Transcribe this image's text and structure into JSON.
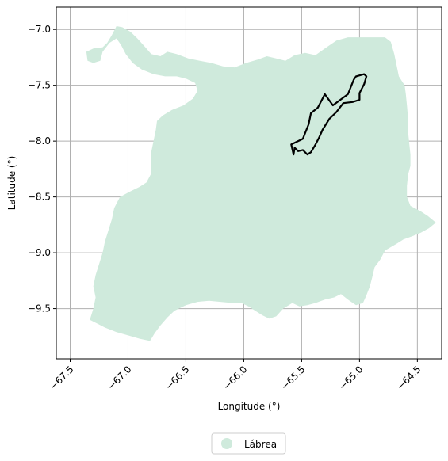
{
  "chart_data": {
    "type": "map",
    "xlabel": "Longitude (°)",
    "ylabel": "Latitude (°)",
    "xlim": [
      -67.62,
      -64.29
    ],
    "ylim": [
      -9.95,
      -6.8
    ],
    "grid": true,
    "x_ticks": [
      -67.5,
      -67.0,
      -66.5,
      -66.0,
      -65.5,
      -65.0,
      -64.5
    ],
    "x_tick_labels": [
      "−67.5",
      "−67.0",
      "−66.5",
      "−66.0",
      "−65.5",
      "−65.0",
      "−64.5"
    ],
    "y_ticks": [
      -7.0,
      -7.5,
      -8.0,
      -8.5,
      -9.0,
      -9.5
    ],
    "y_tick_labels": [
      "−7.0",
      "−7.5",
      "−8.0",
      "−8.5",
      "−9.0",
      "−9.5"
    ],
    "legend": {
      "placement": "bottom-center",
      "entries": [
        {
          "label": "Lábrea",
          "color": "#cfeadc"
        }
      ]
    },
    "colors": {
      "region_fill": "#cfeadc",
      "outline": "#000000",
      "grid": "#b0b0b0"
    },
    "regions": [
      {
        "name": "Lábrea",
        "style": "fill",
        "coords": [
          [
            -67.35,
            -7.28
          ],
          [
            -67.36,
            -7.2
          ],
          [
            -67.3,
            -7.17
          ],
          [
            -67.22,
            -7.16
          ],
          [
            -67.18,
            -7.12
          ],
          [
            -67.14,
            -7.05
          ],
          [
            -67.1,
            -6.97
          ],
          [
            -67.05,
            -6.98
          ],
          [
            -66.98,
            -7.02
          ],
          [
            -66.92,
            -7.08
          ],
          [
            -66.85,
            -7.16
          ],
          [
            -66.8,
            -7.22
          ],
          [
            -66.72,
            -7.24
          ],
          [
            -66.66,
            -7.2
          ],
          [
            -66.58,
            -7.22
          ],
          [
            -66.48,
            -7.26
          ],
          [
            -66.38,
            -7.28
          ],
          [
            -66.28,
            -7.3
          ],
          [
            -66.18,
            -7.33
          ],
          [
            -66.08,
            -7.34
          ],
          [
            -65.98,
            -7.3
          ],
          [
            -65.88,
            -7.27
          ],
          [
            -65.8,
            -7.24
          ],
          [
            -65.72,
            -7.26
          ],
          [
            -65.64,
            -7.28
          ],
          [
            -65.56,
            -7.23
          ],
          [
            -65.47,
            -7.21
          ],
          [
            -65.38,
            -7.23
          ],
          [
            -65.3,
            -7.17
          ],
          [
            -65.2,
            -7.1
          ],
          [
            -65.1,
            -7.07
          ],
          [
            -64.98,
            -7.07
          ],
          [
            -64.78,
            -7.07
          ],
          [
            -64.73,
            -7.11
          ],
          [
            -64.7,
            -7.22
          ],
          [
            -64.68,
            -7.32
          ],
          [
            -64.66,
            -7.42
          ],
          [
            -64.61,
            -7.5
          ],
          [
            -64.6,
            -7.58
          ],
          [
            -64.59,
            -7.68
          ],
          [
            -64.58,
            -7.8
          ],
          [
            -64.58,
            -7.92
          ],
          [
            -64.57,
            -8.02
          ],
          [
            -64.56,
            -8.12
          ],
          [
            -64.56,
            -8.22
          ],
          [
            -64.58,
            -8.3
          ],
          [
            -64.59,
            -8.4
          ],
          [
            -64.59,
            -8.5
          ],
          [
            -64.56,
            -8.58
          ],
          [
            -64.47,
            -8.63
          ],
          [
            -64.41,
            -8.67
          ],
          [
            -64.34,
            -8.73
          ],
          [
            -64.4,
            -8.78
          ],
          [
            -64.47,
            -8.82
          ],
          [
            -64.54,
            -8.85
          ],
          [
            -64.62,
            -8.88
          ],
          [
            -64.68,
            -8.92
          ],
          [
            -64.78,
            -8.98
          ],
          [
            -64.82,
            -9.06
          ],
          [
            -64.87,
            -9.13
          ],
          [
            -64.89,
            -9.22
          ],
          [
            -64.91,
            -9.3
          ],
          [
            -64.94,
            -9.38
          ],
          [
            -64.97,
            -9.45
          ],
          [
            -65.03,
            -9.47
          ],
          [
            -65.1,
            -9.42
          ],
          [
            -65.16,
            -9.37
          ],
          [
            -65.22,
            -9.4
          ],
          [
            -65.3,
            -9.42
          ],
          [
            -65.38,
            -9.45
          ],
          [
            -65.45,
            -9.47
          ],
          [
            -65.52,
            -9.48
          ],
          [
            -65.58,
            -9.45
          ],
          [
            -65.66,
            -9.5
          ],
          [
            -65.72,
            -9.57
          ],
          [
            -65.78,
            -9.59
          ],
          [
            -65.84,
            -9.56
          ],
          [
            -65.9,
            -9.52
          ],
          [
            -65.96,
            -9.48
          ],
          [
            -66.02,
            -9.45
          ],
          [
            -66.1,
            -9.45
          ],
          [
            -66.2,
            -9.44
          ],
          [
            -66.3,
            -9.43
          ],
          [
            -66.4,
            -9.44
          ],
          [
            -66.5,
            -9.47
          ],
          [
            -66.6,
            -9.52
          ],
          [
            -66.66,
            -9.58
          ],
          [
            -66.72,
            -9.65
          ],
          [
            -66.77,
            -9.72
          ],
          [
            -66.81,
            -9.79
          ],
          [
            -66.9,
            -9.77
          ],
          [
            -67.0,
            -9.74
          ],
          [
            -67.1,
            -9.71
          ],
          [
            -67.2,
            -9.67
          ],
          [
            -67.33,
            -9.6
          ],
          [
            -67.3,
            -9.5
          ],
          [
            -67.28,
            -9.4
          ],
          [
            -67.3,
            -9.3
          ],
          [
            -67.28,
            -9.2
          ],
          [
            -67.25,
            -9.1
          ],
          [
            -67.22,
            -9.0
          ],
          [
            -67.2,
            -8.9
          ],
          [
            -67.17,
            -8.8
          ],
          [
            -67.14,
            -8.7
          ],
          [
            -67.12,
            -8.6
          ],
          [
            -67.07,
            -8.5
          ],
          [
            -66.98,
            -8.45
          ],
          [
            -66.9,
            -8.41
          ],
          [
            -66.84,
            -8.37
          ],
          [
            -66.8,
            -8.29
          ],
          [
            -66.8,
            -8.2
          ],
          [
            -66.8,
            -8.1
          ],
          [
            -66.78,
            -8.0
          ],
          [
            -66.76,
            -7.9
          ],
          [
            -66.75,
            -7.82
          ],
          [
            -66.7,
            -7.77
          ],
          [
            -66.62,
            -7.72
          ],
          [
            -66.52,
            -7.68
          ],
          [
            -66.44,
            -7.62
          ],
          [
            -66.4,
            -7.55
          ],
          [
            -66.42,
            -7.48
          ],
          [
            -66.5,
            -7.44
          ],
          [
            -66.58,
            -7.42
          ],
          [
            -66.68,
            -7.42
          ],
          [
            -66.78,
            -7.4
          ],
          [
            -66.88,
            -7.36
          ],
          [
            -66.96,
            -7.3
          ],
          [
            -67.02,
            -7.22
          ],
          [
            -67.06,
            -7.14
          ],
          [
            -67.1,
            -7.08
          ],
          [
            -67.16,
            -7.12
          ],
          [
            -67.22,
            -7.2
          ],
          [
            -67.24,
            -7.28
          ],
          [
            -67.3,
            -7.3
          ]
        ]
      },
      {
        "name": "outlined area",
        "style": "outline",
        "coords": [
          [
            -65.57,
            -8.12
          ],
          [
            -65.59,
            -8.03
          ],
          [
            -65.53,
            -8.0
          ],
          [
            -65.49,
            -7.98
          ],
          [
            -65.44,
            -7.85
          ],
          [
            -65.42,
            -7.75
          ],
          [
            -65.36,
            -7.7
          ],
          [
            -65.32,
            -7.62
          ],
          [
            -65.3,
            -7.58
          ],
          [
            -65.23,
            -7.68
          ],
          [
            -65.1,
            -7.58
          ],
          [
            -65.05,
            -7.45
          ],
          [
            -65.03,
            -7.42
          ],
          [
            -64.96,
            -7.4
          ],
          [
            -64.94,
            -7.42
          ],
          [
            -64.96,
            -7.49
          ],
          [
            -65.0,
            -7.57
          ],
          [
            -65.0,
            -7.63
          ],
          [
            -65.06,
            -7.65
          ],
          [
            -65.14,
            -7.66
          ],
          [
            -65.2,
            -7.74
          ],
          [
            -65.26,
            -7.8
          ],
          [
            -65.32,
            -7.9
          ],
          [
            -65.35,
            -7.97
          ],
          [
            -65.38,
            -8.03
          ],
          [
            -65.42,
            -8.1
          ],
          [
            -65.45,
            -8.12
          ],
          [
            -65.49,
            -8.08
          ],
          [
            -65.53,
            -8.09
          ],
          [
            -65.56,
            -8.06
          ]
        ]
      }
    ]
  }
}
